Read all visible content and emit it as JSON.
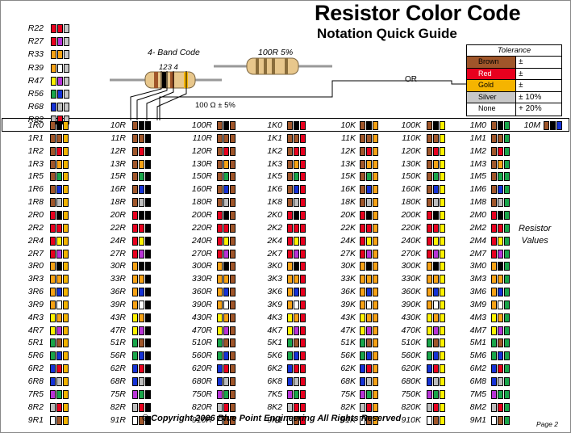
{
  "header": {
    "title": "Resistor Color Code",
    "subtitle": "Notation Quick Guide",
    "band_code_label": "4- Band Code",
    "band_numbers": "123  4",
    "example_label": "100R  5%",
    "example_value": "100 Ω  ± 5%",
    "or_label": "OR"
  },
  "colors": {
    "black": "#000000",
    "brown": "#a0562a",
    "red": "#e8001e",
    "orange": "#f7a215",
    "yellow": "#fff200",
    "green": "#19a64a",
    "blue": "#1532d6",
    "violet": "#b833d6",
    "gray": "#bdbdbd",
    "white": "#ffffff",
    "gold": "#f5b400",
    "silver": "#c8c8c8"
  },
  "tolerance": {
    "heading": "Tolerance",
    "rows": [
      {
        "name": "Brown",
        "value": "±",
        "color": "#a0562a"
      },
      {
        "name": "Red",
        "value": "±",
        "color": "#e8001e"
      },
      {
        "name": "Gold",
        "value": "±",
        "color": "#f5b400"
      },
      {
        "name": "Silver",
        "value": "±   10%",
        "color": "#c8c8c8"
      },
      {
        "name": "None",
        "value": "+   20%",
        "color": "#ffffff"
      }
    ]
  },
  "small_list": [
    {
      "label": "R22",
      "bands": [
        "red",
        "red",
        "silver"
      ]
    },
    {
      "label": "R27",
      "bands": [
        "red",
        "violet",
        "silver"
      ]
    },
    {
      "label": "R33",
      "bands": [
        "orange",
        "orange",
        "silver"
      ]
    },
    {
      "label": "R39",
      "bands": [
        "orange",
        "white",
        "silver"
      ]
    },
    {
      "label": "R47",
      "bands": [
        "yellow",
        "violet",
        "silver"
      ]
    },
    {
      "label": "R56",
      "bands": [
        "green",
        "blue",
        "silver"
      ]
    },
    {
      "label": "R68",
      "bands": [
        "blue",
        "gray",
        "silver"
      ]
    },
    {
      "label": "R82",
      "bands": [
        "gray",
        "red",
        "silver"
      ]
    }
  ],
  "digits": [
    "10",
    "11",
    "12",
    "13",
    "15",
    "16",
    "18",
    "20",
    "22",
    "24",
    "27",
    "30",
    "33",
    "36",
    "39",
    "43",
    "47",
    "51",
    "56",
    "62",
    "68",
    "75",
    "82",
    "91"
  ],
  "columns": [
    {
      "prefix": "",
      "suffix": "",
      "decimal": true,
      "multiplier": "gold"
    },
    {
      "prefix": "",
      "suffix": "R",
      "decimal": false,
      "multiplier": "black"
    },
    {
      "prefix": "",
      "suffix": "0R",
      "decimal": false,
      "multiplier": "brown"
    },
    {
      "prefix": "",
      "suffix": "K",
      "decimal": true,
      "multiplier": "red"
    },
    {
      "prefix": "",
      "suffix": "K",
      "decimal": false,
      "multiplier": "orange"
    },
    {
      "prefix": "",
      "suffix": "0K",
      "decimal": false,
      "multiplier": "yellow"
    },
    {
      "prefix": "",
      "suffix": "M",
      "decimal": true,
      "multiplier": "green"
    }
  ],
  "decimal_sep": {
    "0": "R",
    "3": "K",
    "6": "M"
  },
  "extra": {
    "label": "10M",
    "bands": [
      "brown",
      "black",
      "blue"
    ]
  },
  "resistor_values_label": [
    "Resistor",
    "Values"
  ],
  "footer": {
    "copyright": "© Copyright  2006 Blue Point Engineering     All Rights Reserved",
    "page": "Page 2"
  }
}
